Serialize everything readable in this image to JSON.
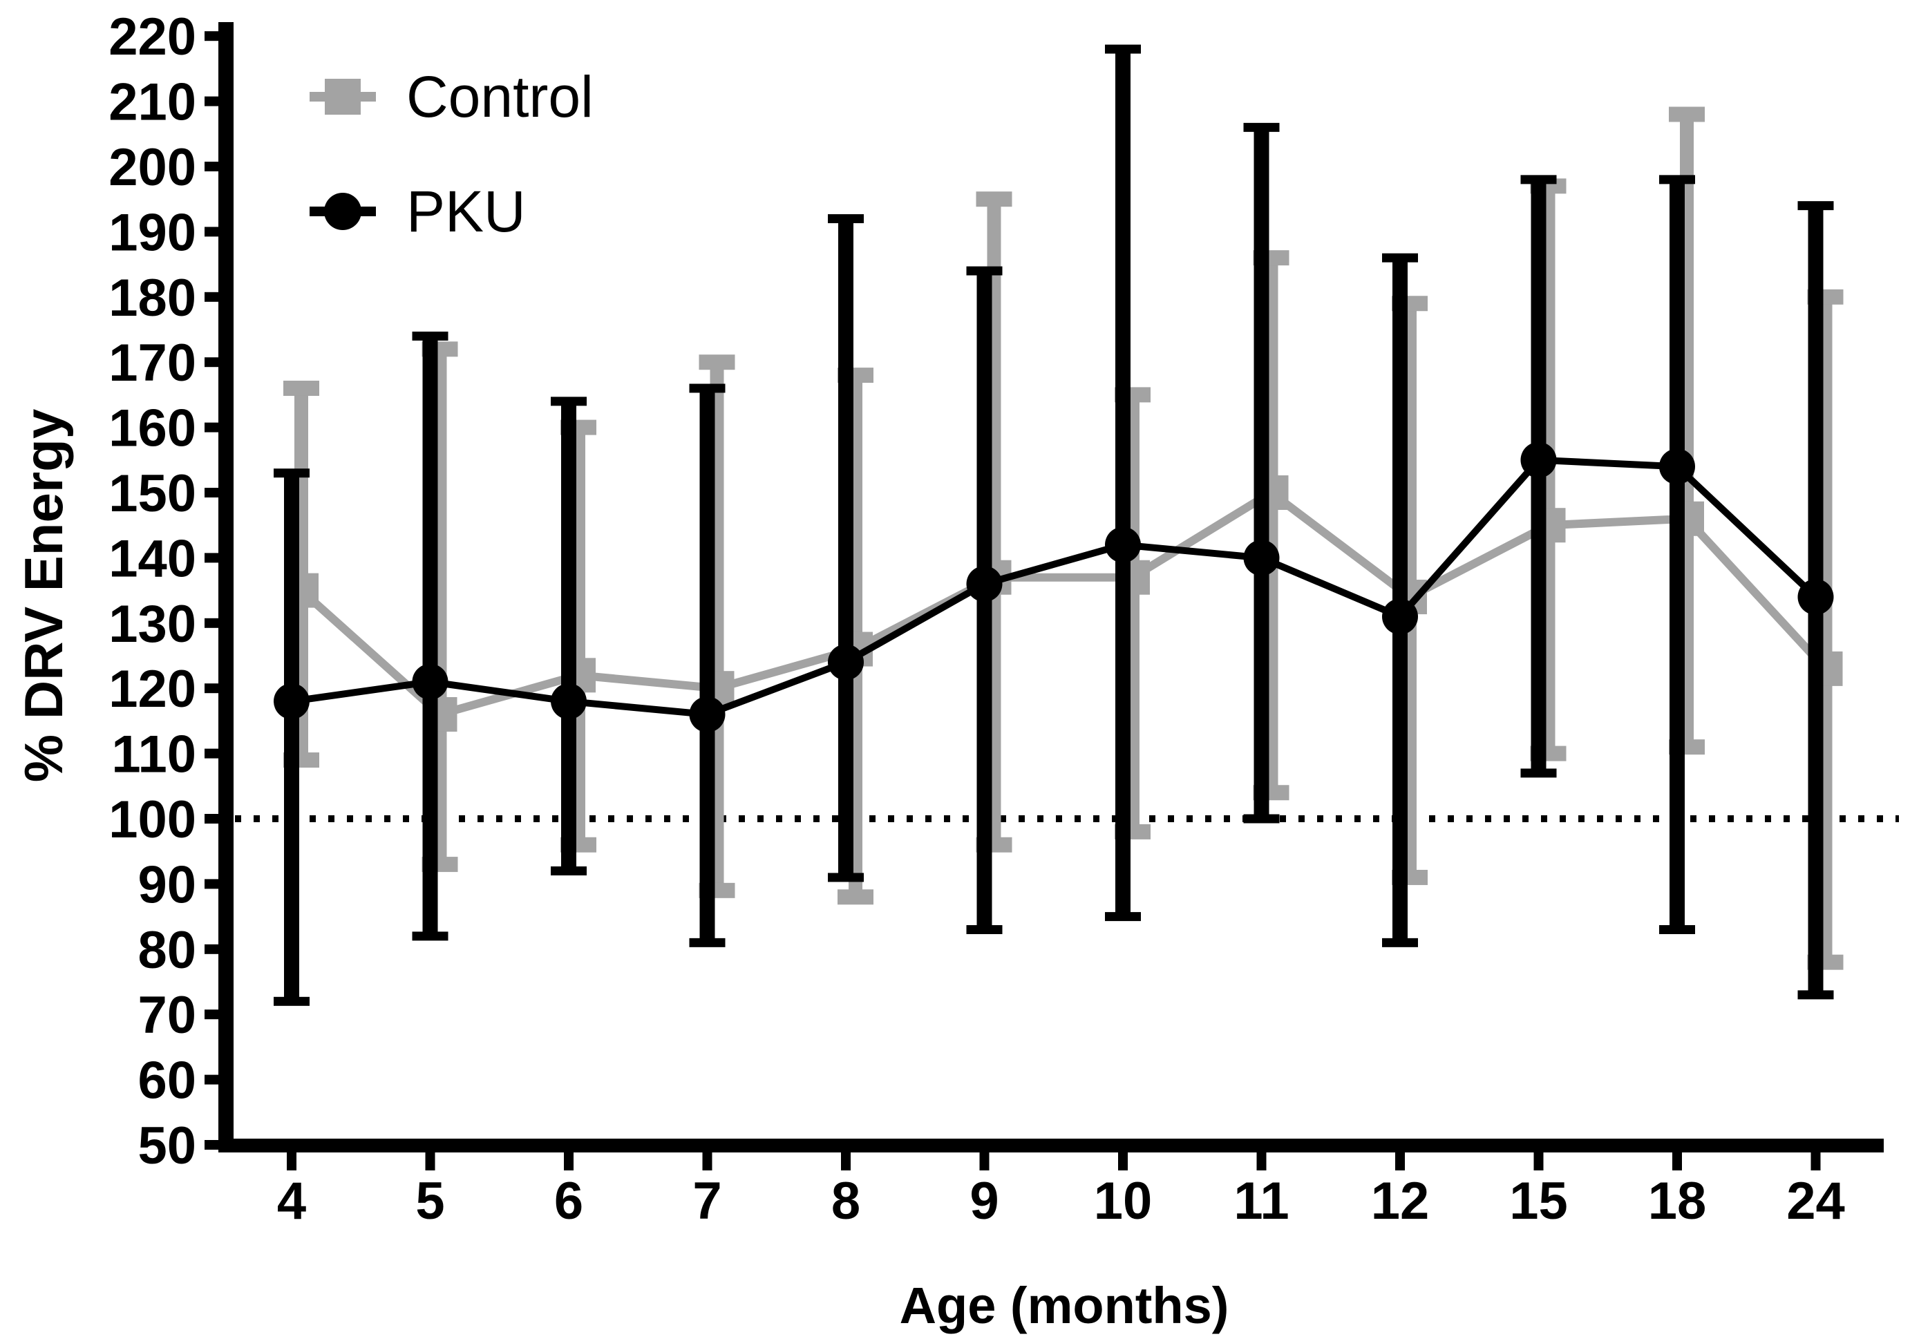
{
  "chart_data": {
    "type": "line",
    "title": "",
    "xlabel": "Age (months)",
    "ylabel": "% DRV Energy",
    "categories": [
      "4",
      "5",
      "6",
      "7",
      "8",
      "9",
      "10",
      "11",
      "12",
      "15",
      "18",
      "24"
    ],
    "y_axis": {
      "min": 50,
      "max": 220,
      "step": 10,
      "tick_labels": [
        "50",
        "60",
        "70",
        "80",
        "90",
        "100",
        "110",
        "120",
        "130",
        "140",
        "150",
        "160",
        "170",
        "180",
        "190",
        "200",
        "210",
        "220"
      ]
    },
    "reference_line": {
      "value": 100,
      "style": "dotted",
      "color": "#000000"
    },
    "grid": "off",
    "legend_position": "top-left",
    "series": [
      {
        "name": "Control",
        "color": "#A3A3A3",
        "marker": "square",
        "values": [
          135,
          116,
          122,
          120,
          126,
          137,
          137,
          150,
          134,
          145,
          146,
          123
        ],
        "error_low": [
          109,
          93,
          96,
          89,
          88,
          96,
          98,
          104,
          91,
          110,
          111,
          78
        ],
        "error_high": [
          166,
          172,
          160,
          170,
          168,
          195,
          165,
          186,
          179,
          197,
          208,
          180
        ]
      },
      {
        "name": "PKU",
        "color": "#000000",
        "marker": "circle",
        "values": [
          118,
          121,
          118,
          116,
          124,
          136,
          142,
          140,
          131,
          155,
          154,
          134
        ],
        "error_low": [
          72,
          82,
          92,
          81,
          91,
          83,
          85,
          100,
          81,
          107,
          83,
          73
        ],
        "error_high": [
          153,
          174,
          164,
          166,
          192,
          184,
          218,
          206,
          186,
          198,
          198,
          194
        ]
      }
    ]
  }
}
